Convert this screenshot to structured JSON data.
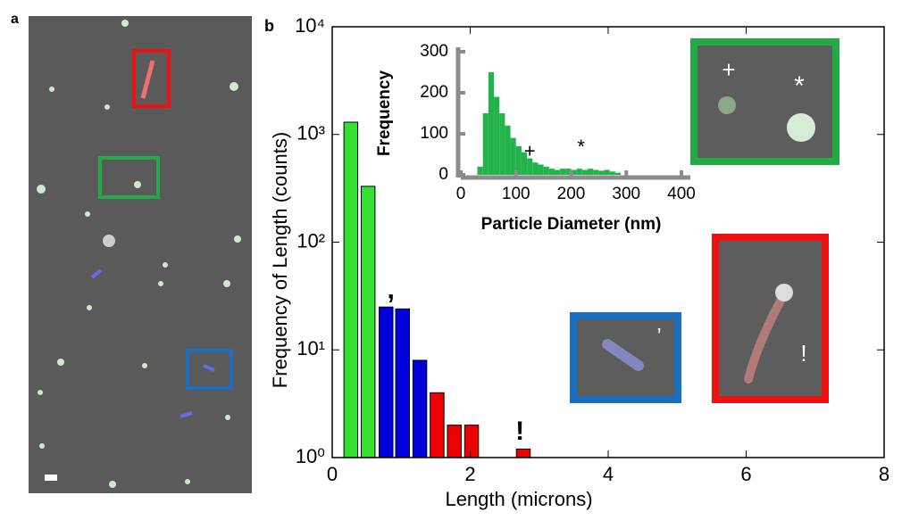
{
  "panel_labels": [
    "a",
    "b"
  ],
  "image_annotations": [
    "+",
    "*",
    "’",
    "!"
  ],
  "chart_data": [
    {
      "type": "bar",
      "xlabel": "Length (microns)",
      "ylabel": "Frequency of Length (counts)",
      "x": [
        0.27,
        0.52,
        0.78,
        1.02,
        1.27,
        1.52,
        1.77,
        2.02,
        2.77
      ],
      "values": [
        1300,
        330,
        25,
        24,
        8,
        4,
        2,
        2,
        1.2
      ],
      "colors": [
        "#33e033",
        "#33e033",
        "#0000dd",
        "#0000dd",
        "#0000dd",
        "#ee0000",
        "#ee0000",
        "#ee0000",
        "#ee0000"
      ],
      "xlim": [
        0,
        8
      ],
      "xticks": [
        0,
        2,
        4,
        6,
        8
      ],
      "ylim": [
        1,
        10000
      ],
      "log_y": true,
      "yticks": [
        {
          "value": 1,
          "label": "10⁰"
        },
        {
          "value": 10,
          "label": "10¹"
        },
        {
          "value": 100,
          "label": "10²"
        },
        {
          "value": 1000,
          "label": "10³"
        },
        {
          "value": 10000,
          "label": "10⁴"
        }
      ],
      "annotations": [
        {
          "text": ",",
          "x": 0.85,
          "y": 35
        },
        {
          "text": "!",
          "x": 2.72,
          "y": 1.7
        }
      ]
    },
    {
      "type": "histogram",
      "xlabel": "Particle Diameter (nm)",
      "ylabel": "Frequency",
      "color": "#22b44a",
      "bins": [
        30,
        40,
        50,
        60,
        70,
        80,
        90,
        100,
        110,
        120,
        130,
        140,
        150,
        160,
        170,
        180,
        190,
        200,
        210,
        220,
        230,
        240,
        250,
        260,
        270,
        280,
        290
      ],
      "counts": [
        20,
        150,
        250,
        190,
        150,
        120,
        90,
        70,
        55,
        40,
        30,
        25,
        20,
        15,
        12,
        15,
        15,
        12,
        15,
        12,
        15,
        12,
        10,
        12,
        8,
        5
      ],
      "xlim": [
        0,
        400
      ],
      "xticks": [
        0,
        100,
        200,
        300,
        400
      ],
      "ylim": [
        0,
        300
      ],
      "yticks": [
        0,
        100,
        200,
        300
      ],
      "annotations": [
        {
          "text": "+",
          "x": 125,
          "y": 55
        },
        {
          "text": "*",
          "x": 218,
          "y": 65
        }
      ]
    }
  ]
}
